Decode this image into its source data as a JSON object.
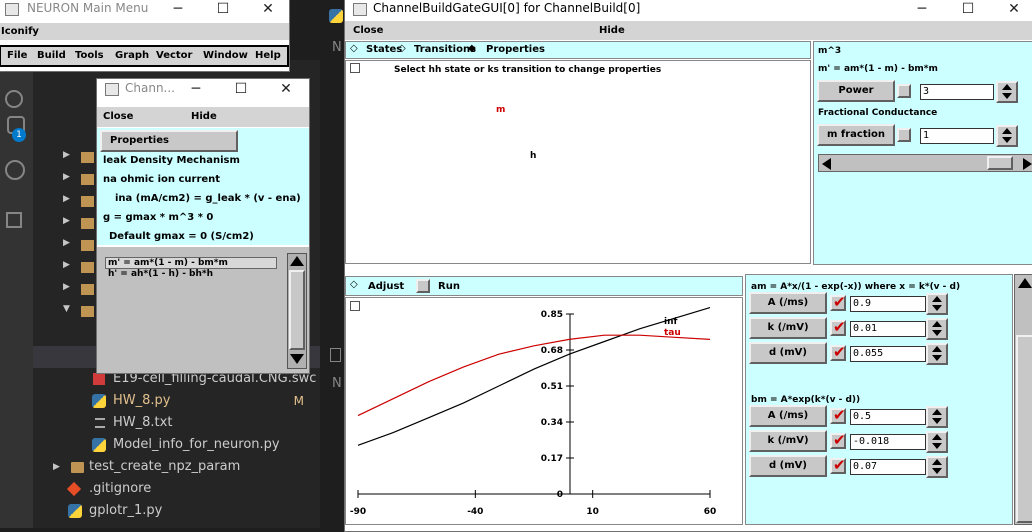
{
  "vscode": {
    "activity_badge": "1",
    "editor_letters": [
      "N",
      "N"
    ],
    "tree": [
      {
        "label": "E19-cell_filling-caudal.CNG.swc",
        "kind": "swc",
        "badge": ""
      },
      {
        "label": "HW_8.py",
        "kind": "py",
        "badge": "M"
      },
      {
        "label": "HW_8.txt",
        "kind": "txt",
        "badge": ""
      },
      {
        "label": "Model_info_for_neuron.py",
        "kind": "py",
        "badge": ""
      },
      {
        "label": "test_create_npz_param",
        "kind": "folder",
        "badge": ""
      },
      {
        "label": ".gitignore",
        "kind": "git",
        "badge": ""
      },
      {
        "label": "gplotr_1.py",
        "kind": "py",
        "badge": ""
      }
    ]
  },
  "main_menu": {
    "title": "NEURON Main Menu",
    "iconify": "Iconify",
    "menus": [
      "File",
      "Build",
      "Tools",
      "Graph",
      "Vector",
      "Window",
      "Help"
    ]
  },
  "chann_small": {
    "title": "Chann...",
    "close": "Close",
    "hide": "Hide",
    "properties": "Properties",
    "lines": [
      "leak Density Mechanism",
      "na ohmic ion current",
      "ina (mA/cm2) = g_leak * (v - ena)",
      "g = gmax * m^3 * 0",
      "Default gmax = 0 (S/cm2)"
    ],
    "list": [
      "m' = am*(1 - m) - bm*m",
      "h' = ah*(1 - h) - bh*h"
    ]
  },
  "gate_gui": {
    "title": "ChannelBuildGateGUI[0] for ChannelBuild[0]",
    "close": "Close",
    "hide": "Hide",
    "radio": {
      "states": "States",
      "transitions": "Transitions",
      "properties": "Properties"
    },
    "instruction": "Select hh state or ks transition to change properties",
    "state_m": "m",
    "state_h": "h",
    "right_panel": {
      "title": "m^3",
      "equation": "m' = am*(1 - m) - bm*m",
      "power_label": "Power",
      "power_value": "3",
      "frac_title": "Fractional Conductance",
      "mfrac_label": "m fraction",
      "mfrac_value": "1"
    },
    "plot_bar": {
      "adjust": "Adjust",
      "run": "Run"
    },
    "am": {
      "title": "am = A*x/(1 - exp(-x)) where x = k*(v - d)",
      "params": [
        {
          "label": "A (/ms)",
          "value": "0.9"
        },
        {
          "label": "k (/mV)",
          "value": "0.01"
        },
        {
          "label": "d (mV)",
          "value": "0.055"
        }
      ]
    },
    "bm": {
      "title": "bm = A*exp(k*(v - d))",
      "params": [
        {
          "label": "A (/ms)",
          "value": "0.5"
        },
        {
          "label": "k (/mV)",
          "value": "-0.018"
        },
        {
          "label": "d (mV)",
          "value": "0.07"
        }
      ]
    }
  },
  "chart_data": {
    "type": "line",
    "title": "",
    "xlabel": "",
    "ylabel": "",
    "xlim": [
      -90,
      60
    ],
    "ylim": [
      0,
      0.85
    ],
    "x_ticks": [
      "-90",
      "-40",
      "10",
      "60"
    ],
    "y_ticks": [
      "0",
      "0.17",
      "0.34",
      "0.51",
      "0.68",
      "0.85"
    ],
    "series": [
      {
        "name": "inf",
        "color": "#000000",
        "x": [
          -90,
          -75,
          -60,
          -45,
          -30,
          -15,
          0,
          15,
          30,
          45,
          60
        ],
        "y": [
          0.23,
          0.29,
          0.36,
          0.43,
          0.51,
          0.59,
          0.66,
          0.72,
          0.78,
          0.83,
          0.88
        ]
      },
      {
        "name": "tau",
        "color": "#cc0000",
        "x": [
          -90,
          -75,
          -60,
          -45,
          -30,
          -15,
          0,
          15,
          30,
          45,
          60
        ],
        "y": [
          0.37,
          0.45,
          0.53,
          0.6,
          0.66,
          0.7,
          0.73,
          0.75,
          0.75,
          0.74,
          0.73
        ]
      }
    ]
  }
}
